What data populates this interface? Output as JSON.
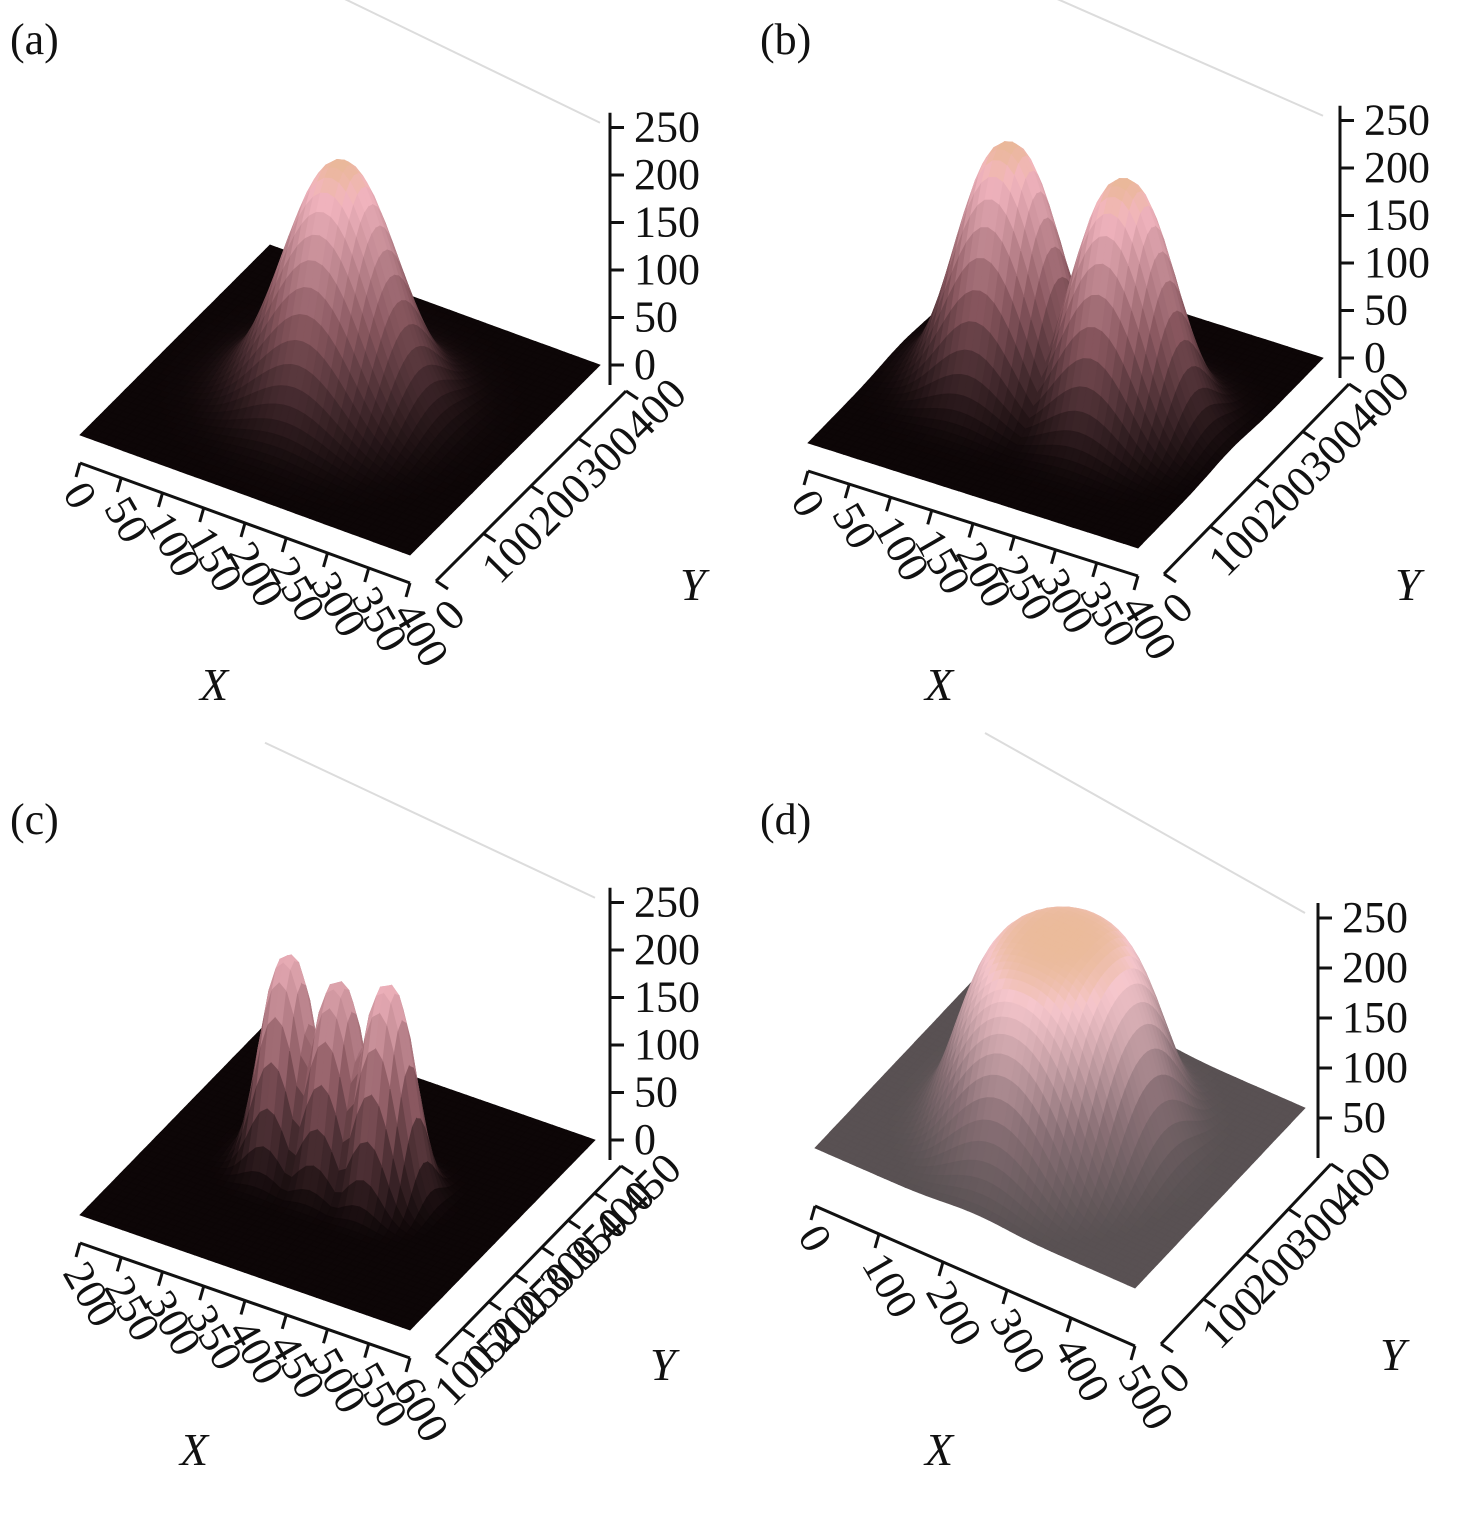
{
  "panels": [
    {
      "label": "(a)",
      "zticks": [
        "0",
        "50",
        "100",
        "150",
        "200",
        "250"
      ],
      "xticks": [
        "0",
        "50",
        "100",
        "150",
        "200",
        "250",
        "300",
        "350",
        "400"
      ],
      "yticks": [
        "0",
        "100",
        "200",
        "300",
        "400"
      ],
      "xlabel": "X",
      "ylabel": "Y"
    },
    {
      "label": "(b)",
      "zticks": [
        "0",
        "50",
        "100",
        "150",
        "200",
        "250"
      ],
      "xticks": [
        "0",
        "50",
        "100",
        "150",
        "200",
        "250",
        "300",
        "350",
        "400"
      ],
      "yticks": [
        "0",
        "100",
        "200",
        "300",
        "400"
      ],
      "xlabel": "X",
      "ylabel": "Y"
    },
    {
      "label": "(c)",
      "zticks": [
        "0",
        "50",
        "100",
        "150",
        "200",
        "250"
      ],
      "xticks": [
        "200",
        "250",
        "300",
        "350",
        "400",
        "450",
        "500",
        "550",
        "600"
      ],
      "yticks": [
        "100",
        "150",
        "200",
        "250",
        "300",
        "350",
        "400",
        "450"
      ],
      "xlabel": "X",
      "ylabel": "Y"
    },
    {
      "label": "(d)",
      "zticks": [
        "50",
        "100",
        "150",
        "200",
        "250"
      ],
      "xticks": [
        "0",
        "100",
        "200",
        "300",
        "400",
        "500"
      ],
      "yticks": [
        "0",
        "100",
        "200",
        "300",
        "400"
      ],
      "xlabel": "X",
      "ylabel": "Y"
    }
  ],
  "chart_data": [
    {
      "type": "surface",
      "xlim": [
        0,
        400
      ],
      "ylim": [
        0,
        400
      ],
      "zlim": [
        0,
        255
      ],
      "peaks": [
        {
          "x": 200,
          "y": 200,
          "z": 250
        }
      ],
      "baseline_z": 0,
      "colors": {
        "low": "#0d0607",
        "mid": "#8a5860",
        "high": "#f3b6c0",
        "top": "#e8b890"
      }
    },
    {
      "type": "surface",
      "xlim": [
        0,
        400
      ],
      "ylim": [
        0,
        400
      ],
      "zlim": [
        0,
        255
      ],
      "peaks": [
        {
          "x": 130,
          "y": 200,
          "z": 250
        },
        {
          "x": 270,
          "y": 200,
          "z": 250
        }
      ],
      "baseline_z": 0,
      "colors": {
        "low": "#0d0607",
        "mid": "#8a5860",
        "high": "#f3b6c0",
        "top": "#e8b890"
      }
    },
    {
      "type": "surface",
      "xlim": [
        200,
        600
      ],
      "ylim": [
        100,
        450
      ],
      "zlim": [
        0,
        255
      ],
      "peaks": [
        {
          "x": 340,
          "y": 275,
          "z": 215
        },
        {
          "x": 400,
          "y": 275,
          "z": 205
        },
        {
          "x": 460,
          "y": 275,
          "z": 220
        }
      ],
      "baseline_z": 0,
      "colors": {
        "low": "#0d0607",
        "mid": "#8a5860",
        "high": "#f3b6c0",
        "top": "#e8b890"
      }
    },
    {
      "type": "surface",
      "xlim": [
        0,
        500
      ],
      "ylim": [
        0,
        400
      ],
      "zlim": [
        30,
        255
      ],
      "peaks": [
        {
          "x": 250,
          "y": 200,
          "z": 250
        }
      ],
      "baseline_z": 60,
      "colors": {
        "low": "#444444",
        "mid": "#8a7076",
        "high": "#f6c6cc",
        "top": "#e8b890"
      }
    }
  ]
}
